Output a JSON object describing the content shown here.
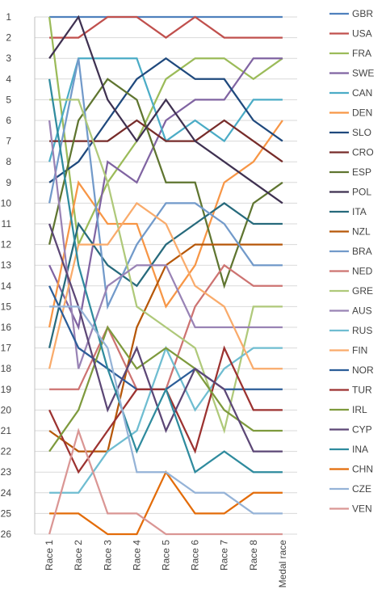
{
  "chart_data": {
    "type": "line",
    "title": "",
    "xlabel": "",
    "ylabel": "",
    "categories": [
      "Race 1",
      "Race 2",
      "Race 3",
      "Race 4",
      "Race 5",
      "Race 6",
      "Race 7",
      "Race 8",
      "Medal race"
    ],
    "ylim": [
      1,
      26
    ],
    "y_inverted": true,
    "y_ticks": [
      "1",
      "2",
      "3",
      "4",
      "5",
      "6",
      "7",
      "8",
      "9",
      "10",
      "11",
      "12",
      "13",
      "14",
      "15",
      "16",
      "17",
      "18",
      "19",
      "20",
      "21",
      "22",
      "23",
      "24",
      "25",
      "26"
    ],
    "grid": "horizontal",
    "legend_position": "right",
    "series": [
      {
        "name": "GBR",
        "color": "#4F81BD",
        "values": [
          1,
          1,
          1,
          1,
          1,
          1,
          1,
          1,
          1
        ]
      },
      {
        "name": "USA",
        "color": "#C0504D",
        "values": [
          2,
          2,
          1,
          1,
          2,
          1,
          2,
          2,
          2
        ]
      },
      {
        "name": "FRA",
        "color": "#9BBB59",
        "values": [
          1,
          12,
          9,
          7,
          4,
          3,
          3,
          4,
          3
        ]
      },
      {
        "name": "SWE",
        "color": "#8064A2",
        "values": [
          13,
          16,
          8,
          9,
          6,
          5,
          5,
          3,
          3
        ]
      },
      {
        "name": "CAN",
        "color": "#4BACC6",
        "values": [
          8,
          3,
          3,
          3,
          7,
          6,
          7,
          5,
          5
        ]
      },
      {
        "name": "DEN",
        "color": "#F79646",
        "values": [
          16,
          9,
          11,
          11,
          15,
          13,
          9,
          8,
          6
        ]
      },
      {
        "name": "SLO",
        "color": "#1F497D",
        "values": [
          9,
          8,
          6,
          4,
          3,
          4,
          4,
          6,
          7
        ]
      },
      {
        "name": "CRO",
        "color": "#772C2A",
        "values": [
          7,
          7,
          7,
          6,
          7,
          7,
          6,
          7,
          8
        ]
      },
      {
        "name": "ESP",
        "color": "#5F7530",
        "values": [
          12,
          6,
          4,
          5,
          9,
          9,
          14,
          10,
          9
        ]
      },
      {
        "name": "POL",
        "color": "#3F3151",
        "values": [
          3,
          1,
          5,
          7,
          5,
          7,
          8,
          9,
          10
        ]
      },
      {
        "name": "ITA",
        "color": "#276A7C",
        "values": [
          17,
          11,
          13,
          14,
          12,
          11,
          10,
          11,
          11
        ]
      },
      {
        "name": "NZL",
        "color": "#B65708",
        "values": [
          21,
          22,
          22,
          16,
          13,
          12,
          12,
          12,
          12
        ]
      },
      {
        "name": "BRA",
        "color": "#729ACA",
        "values": [
          10,
          3,
          15,
          12,
          10,
          10,
          11,
          13,
          13
        ]
      },
      {
        "name": "NED",
        "color": "#CD7371",
        "values": [
          19,
          19,
          16,
          19,
          19,
          15,
          13,
          14,
          14
        ]
      },
      {
        "name": "GRE",
        "color": "#AFC97A",
        "values": [
          5,
          5,
          9,
          15,
          16,
          17,
          21,
          15,
          15
        ]
      },
      {
        "name": "AUS",
        "color": "#9983B5",
        "values": [
          6,
          18,
          14,
          13,
          13,
          16,
          16,
          16,
          16
        ]
      },
      {
        "name": "RUS",
        "color": "#6FBDD1",
        "values": [
          24,
          24,
          22,
          21,
          17,
          20,
          18,
          17,
          17
        ]
      },
      {
        "name": "FIN",
        "color": "#F9AB6B",
        "values": [
          18,
          12,
          12,
          10,
          11,
          14,
          15,
          18,
          18
        ]
      },
      {
        "name": "NOR",
        "color": "#2C5D98",
        "values": [
          14,
          17,
          18,
          19,
          19,
          18,
          19,
          19,
          19
        ]
      },
      {
        "name": "TUR",
        "color": "#9C3230",
        "values": [
          20,
          23,
          21,
          19,
          19,
          22,
          17,
          20,
          20
        ]
      },
      {
        "name": "IRL",
        "color": "#7E9A3D",
        "values": [
          22,
          20,
          16,
          18,
          17,
          18,
          20,
          21,
          21
        ]
      },
      {
        "name": "CYP",
        "color": "#5C4776",
        "values": [
          11,
          15,
          20,
          17,
          21,
          18,
          19,
          22,
          22
        ]
      },
      {
        "name": "INA",
        "color": "#2F8B9E",
        "values": [
          4,
          13,
          18,
          22,
          19,
          23,
          22,
          23,
          23
        ]
      },
      {
        "name": "CHN",
        "color": "#E36C09",
        "values": [
          25,
          25,
          26,
          26,
          23,
          25,
          25,
          24,
          24
        ]
      },
      {
        "name": "CZE",
        "color": "#95B3D7",
        "values": [
          15,
          15,
          17,
          23,
          23,
          24,
          24,
          25,
          25
        ]
      },
      {
        "name": "VEN",
        "color": "#DA9694",
        "values": [
          26,
          21,
          25,
          25,
          26,
          26,
          26,
          26,
          26
        ]
      }
    ]
  }
}
